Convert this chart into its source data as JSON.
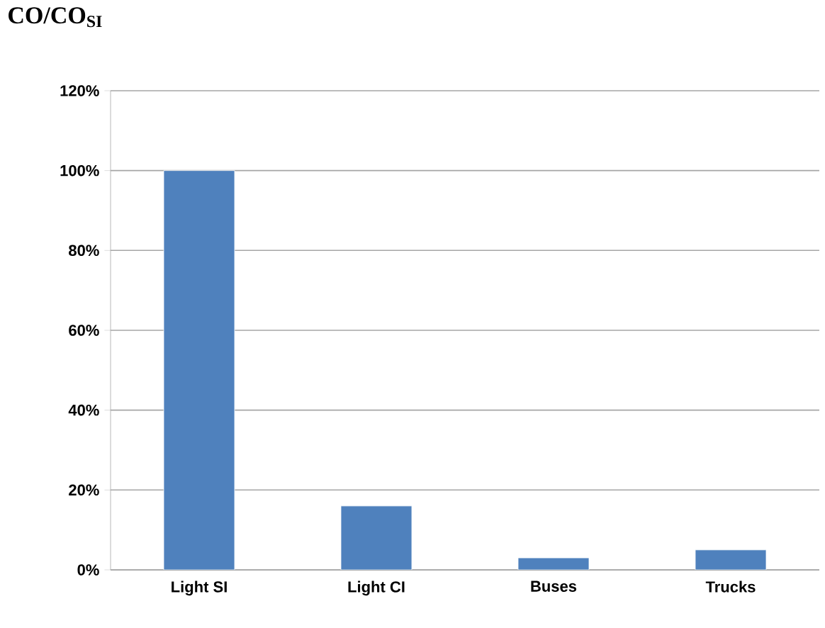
{
  "chart_data": {
    "type": "bar",
    "title": "CO/CO$_{SI}$",
    "categories": [
      "Light SI",
      "Light CI",
      "Buses",
      "Trucks"
    ],
    "values": [
      100,
      16,
      3,
      5
    ],
    "color": "#4f81bd",
    "ylim": [
      0,
      120
    ],
    "yticks": [
      {
        "value": 0,
        "label": "0%"
      },
      {
        "value": 20,
        "label": "20%"
      },
      {
        "value": 40,
        "label": "40%"
      },
      {
        "value": 60,
        "label": "60%"
      },
      {
        "value": 80,
        "label": "80%"
      },
      {
        "value": 100,
        "label": "100%"
      },
      {
        "value": 120,
        "label": "120%"
      }
    ],
    "grid": "y"
  }
}
